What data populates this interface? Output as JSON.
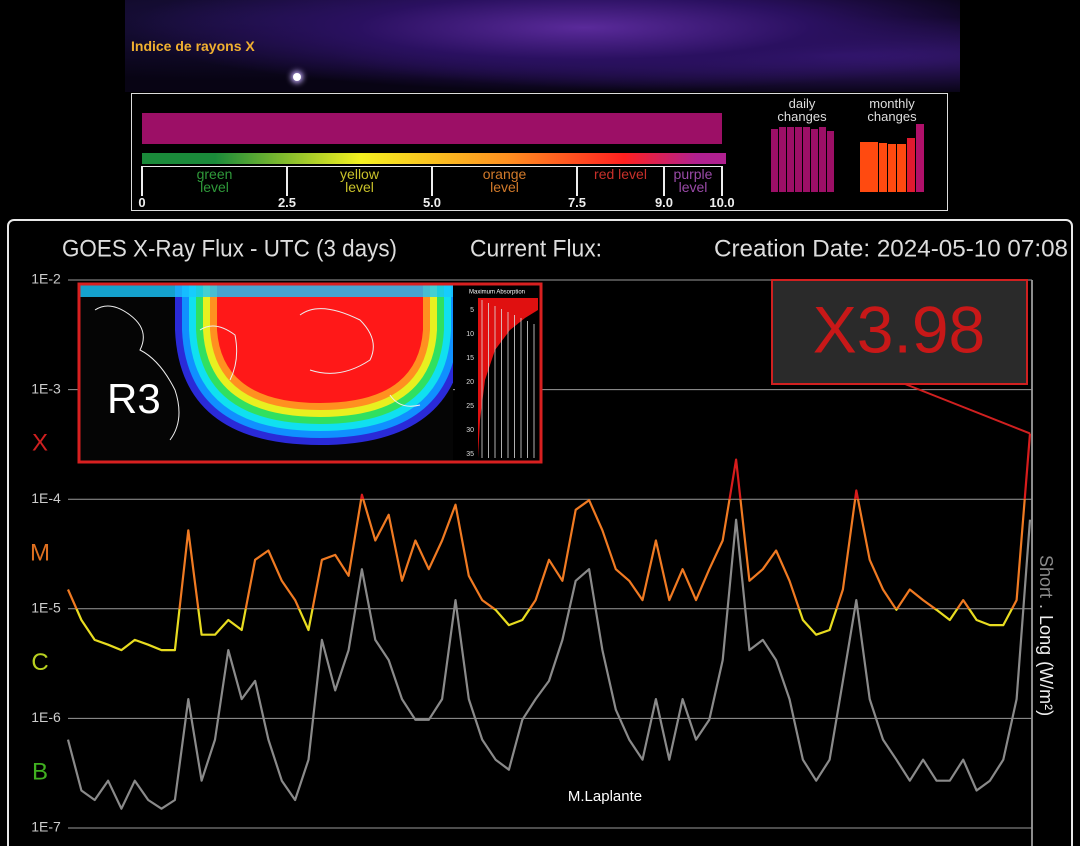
{
  "header": {
    "title": "Indice de rayons X"
  },
  "xray_index": {
    "value": 10,
    "color": "#9c0f66",
    "xlim": [
      0,
      10
    ],
    "ticks": [
      0,
      2.5,
      {
        "value": 5,
        "label": "5.0"
      },
      7.5,
      {
        "value": 9,
        "label": "9.0"
      },
      {
        "value": 10,
        "label": "10.0"
      }
    ],
    "levels": [
      {
        "name": "green level",
        "color": "#2f9a3a",
        "bar_color": "#1a8a3a"
      },
      {
        "name": "yellow level",
        "color": "#c9c22a",
        "bar_color": "#f4f020"
      },
      {
        "name": "orange level",
        "color": "#d27a2a",
        "bar_color": "#ff9020"
      },
      {
        "name": "red level",
        "color": "#c8302a",
        "bar_color": "#ff2020"
      },
      {
        "name": "purple level",
        "color": "#9a4aa8",
        "bar_color": "#b02090"
      }
    ],
    "daily_changes": {
      "label": "daily changes",
      "color": "#9c0f66",
      "values": [
        9.3,
        9.6,
        9.6,
        9.6,
        9.6,
        9.3,
        9.6,
        8.9
      ]
    },
    "monthly_changes": {
      "label": "monthly changes",
      "values": [
        7.4,
        7.4,
        7.2,
        7.0,
        7.1,
        7.9,
        10
      ],
      "colors": [
        "#ff4a10",
        "#ff4a10",
        "#ff4a10",
        "#ff4a10",
        "#ff4a10",
        "#e01a30",
        "#b0106a"
      ]
    }
  },
  "chart_data": {
    "type": "line",
    "title": "GOES X-Ray Flux - UTC (3 days)",
    "subtitle": "Current Flux:",
    "creation_date": "Creation Date: 2024-05-10 07:08",
    "log_scale": true,
    "ylim": [
      1e-07,
      0.01
    ],
    "yticks": [
      {
        "value": 0.01,
        "label": "1E-2"
      },
      {
        "value": 0.001,
        "label": "1E-3"
      },
      {
        "value": 0.0001,
        "label": "1E-4"
      },
      {
        "value": 1e-05,
        "label": "1E-5"
      },
      {
        "value": 1e-06,
        "label": "1E-6"
      },
      {
        "value": 1e-07,
        "label": "1E-7"
      }
    ],
    "grid": true,
    "class_labels": [
      {
        "label": "X",
        "color": "#d02020"
      },
      {
        "label": "M",
        "color": "#e07020"
      },
      {
        "label": "C",
        "color": "#b8d020"
      },
      {
        "label": "B",
        "color": "#40b020"
      }
    ],
    "x": [
      0,
      1,
      2,
      3,
      4,
      5,
      6,
      7,
      8,
      9,
      10,
      11,
      12,
      13,
      14,
      15,
      16,
      17,
      18,
      19,
      20,
      21,
      22,
      23,
      24,
      25,
      26,
      27,
      28,
      29,
      30,
      31,
      32,
      33,
      34,
      35,
      36,
      37,
      38,
      39,
      40,
      41,
      42,
      43,
      44,
      45,
      46,
      47,
      48,
      49,
      50,
      51,
      52,
      53,
      54,
      55,
      56,
      57,
      58,
      59,
      60,
      61,
      62,
      63,
      64,
      65,
      66,
      67,
      68,
      69,
      70,
      71,
      72
    ],
    "xlim": [
      0,
      72
    ],
    "series": [
      {
        "name": "Short",
        "color": "#8a8a8a",
        "values": [
          6.4e-07,
          2.2e-07,
          1.8e-07,
          2.7e-07,
          1.5e-07,
          2.7e-07,
          1.8e-07,
          1.5e-07,
          1.8e-07,
          1.5e-06,
          2.7e-07,
          6.4e-07,
          4.2e-06,
          1.5e-06,
          2.2e-06,
          6.4e-07,
          2.7e-07,
          1.8e-07,
          4.2e-07,
          5.2e-06,
          1.8e-06,
          4.2e-06,
          2.3e-05,
          5.2e-06,
          3.4e-06,
          1.5e-06,
          9.7e-07,
          9.7e-07,
          1.5e-06,
          1.2e-05,
          1.5e-06,
          6.4e-07,
          4.2e-07,
          3.4e-07,
          9.7e-07,
          1.5e-06,
          2.2e-06,
          5.2e-06,
          1.8e-05,
          2.3e-05,
          4.2e-06,
          1.2e-06,
          6.4e-07,
          4.2e-07,
          1.5e-06,
          4.2e-07,
          1.5e-06,
          6.4e-07,
          9.7e-07,
          3.4e-06,
          6.5e-05,
          4.2e-06,
          5.2e-06,
          3.4e-06,
          1.5e-06,
          4.2e-07,
          2.7e-07,
          4.2e-07,
          2.2e-06,
          1.2e-05,
          1.5e-06,
          6.4e-07,
          4.2e-07,
          2.7e-07,
          4.2e-07,
          2.7e-07,
          2.7e-07,
          4.2e-07,
          2.2e-07,
          2.7e-07,
          4.2e-07,
          1.5e-06,
          6.5e-05
        ]
      },
      {
        "name": "Long",
        "color": "#f07a22",
        "level_colors": [
          {
            "min": 0.0001,
            "color": "#d81c1c"
          },
          {
            "min": 1e-05,
            "color": "#f07a22"
          },
          {
            "min": 1e-07,
            "color": "#e8dc20"
          }
        ],
        "values": [
          1.5e-05,
          7.9e-06,
          5.2e-06,
          4.7e-06,
          4.2e-06,
          5.2e-06,
          4.7e-06,
          4.2e-06,
          4.2e-06,
          5.2e-05,
          5.8e-06,
          5.8e-06,
          7.9e-06,
          6.4e-06,
          2.8e-05,
          3.4e-05,
          1.8e-05,
          1.2e-05,
          6.4e-06,
          2.8e-05,
          3.1e-05,
          2e-05,
          0.00011,
          4.2e-05,
          7.2e-05,
          1.8e-05,
          4.2e-05,
          2.3e-05,
          4.2e-05,
          8.9e-05,
          2e-05,
          1.2e-05,
          9.8e-06,
          7.1e-06,
          7.9e-06,
          1.2e-05,
          2.8e-05,
          1.8e-05,
          8e-05,
          9.8e-05,
          5.2e-05,
          2.3e-05,
          1.8e-05,
          1.2e-05,
          4.2e-05,
          1.2e-05,
          2.3e-05,
          1.2e-05,
          2.3e-05,
          4.2e-05,
          0.00023,
          1.8e-05,
          2.3e-05,
          3.4e-05,
          1.8e-05,
          7.9e-06,
          5.8e-06,
          6.4e-06,
          1.5e-05,
          0.00012,
          2.8e-05,
          1.5e-05,
          9.8e-06,
          1.5e-05,
          1.2e-05,
          9.8e-06,
          7.9e-06,
          1.2e-05,
          7.9e-06,
          7.1e-06,
          7.1e-06,
          1.2e-05,
          0.000398
        ]
      }
    ],
    "legend_separator": ".",
    "ylabel": "(W/m²)",
    "annotation": {
      "text": "X3.98",
      "color": "#c81818"
    },
    "inset": {
      "label": "R3",
      "title": "Maximum Absorption",
      "scale_labels": [
        5,
        10,
        15,
        20,
        25,
        30,
        35
      ]
    },
    "credit": "M.Laplante"
  }
}
